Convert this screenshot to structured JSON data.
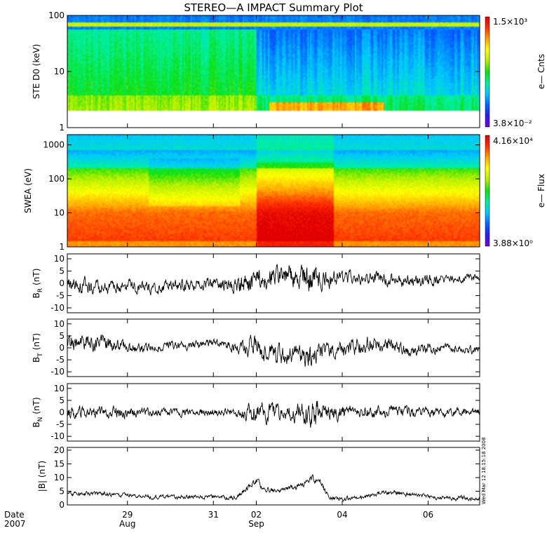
{
  "figure": {
    "title": "STEREO—A IMPACT Summary Plot",
    "timestamp": "Wed Mar 12 18:15:18 2008",
    "date_label": "Date",
    "year_label": "2007"
  },
  "colors": {
    "palette": [
      "#7a00d4",
      "#2a1ef0",
      "#0064ff",
      "#00c8ff",
      "#00f0a0",
      "#10e010",
      "#b8f000",
      "#ffff00",
      "#ffa800",
      "#ff3000",
      "#e00000"
    ],
    "line": "#000000"
  },
  "chart_data": [
    {
      "id": "ste",
      "type": "heatmap",
      "ylabel": "STE D0 (keV)",
      "ylog": true,
      "ylim": [
        1,
        100
      ],
      "yticks": [
        "1",
        "10",
        "100"
      ],
      "colorbar": {
        "label": "e— Cnts",
        "max": "1.5×10³",
        "min": "3.8×10⁻²",
        "vmax": 1500,
        "vmin": 0.038
      },
      "data_range_kev": [
        2,
        100
      ]
    },
    {
      "id": "swea",
      "type": "heatmap",
      "ylabel": "SWEA (eV)",
      "ylog": true,
      "ylim": [
        1,
        2000
      ],
      "yticks": [
        "1",
        "10",
        "100",
        "1000"
      ],
      "colorbar": {
        "label": "e— Flux",
        "max": "4.16×10⁴",
        "min": "3.88×10⁰",
        "vmax": 41600,
        "vmin": 3.88
      }
    },
    {
      "id": "br",
      "type": "line",
      "ylabel_main": "B",
      "ylabel_sub": "R",
      "ylabel_unit": "(nT)",
      "ylim": [
        -12,
        12
      ],
      "yticks": [
        "-10",
        "-5",
        "0",
        "5",
        "10"
      ],
      "series": [
        {
          "x": [
            28.0,
            28.5,
            29.0,
            29.5,
            30.0,
            30.5,
            31.0,
            31.5,
            32.0,
            32.5,
            33.0,
            33.3,
            33.5,
            34.0,
            34.5,
            35.0,
            35.5,
            36.0,
            36.5,
            37.0
          ],
          "values": [
            -1,
            -2,
            -1,
            -2,
            -1,
            -1,
            0,
            -1,
            1,
            3,
            3,
            2,
            2,
            2,
            2,
            2,
            1,
            1,
            2,
            2
          ],
          "amplitude": [
            4,
            3,
            3,
            3,
            3,
            3,
            3,
            4,
            7,
            5,
            6,
            9,
            5,
            4,
            3,
            3,
            3,
            3,
            2,
            2
          ]
        }
      ]
    },
    {
      "id": "bt",
      "type": "line",
      "ylabel_main": "B",
      "ylabel_sub": "T",
      "ylabel_unit": "(nT)",
      "ylim": [
        -12,
        12
      ],
      "yticks": [
        "-10",
        "-5",
        "0",
        "5",
        "10"
      ],
      "series": [
        {
          "x": [
            28.0,
            28.5,
            29.0,
            29.5,
            30.0,
            30.5,
            31.0,
            31.5,
            32.0,
            32.5,
            33.0,
            33.3,
            33.5,
            34.0,
            34.5,
            35.0,
            35.5,
            36.0,
            36.5,
            37.0
          ],
          "values": [
            2,
            2,
            0,
            0,
            1,
            1,
            2,
            1,
            0,
            -3,
            -3,
            -4,
            -2,
            -1,
            1,
            2,
            -2,
            0,
            0,
            -1
          ],
          "amplitude": [
            4,
            4,
            3,
            2,
            2,
            2,
            2,
            3,
            6,
            5,
            5,
            7,
            4,
            4,
            4,
            4,
            3,
            3,
            2,
            2
          ]
        }
      ]
    },
    {
      "id": "bn",
      "type": "line",
      "ylabel_main": "B",
      "ylabel_sub": "N",
      "ylabel_unit": "(nT)",
      "ylim": [
        -12,
        12
      ],
      "yticks": [
        "-10",
        "-5",
        "0",
        "5",
        "10"
      ],
      "series": [
        {
          "x": [
            28.0,
            28.5,
            29.0,
            29.5,
            30.0,
            30.5,
            31.0,
            31.5,
            32.0,
            32.5,
            33.0,
            33.3,
            33.5,
            34.0,
            34.5,
            35.0,
            35.5,
            36.0,
            36.5,
            37.0
          ],
          "values": [
            0,
            0,
            0,
            0,
            0,
            0,
            0,
            0,
            0,
            0,
            0,
            0,
            0,
            0,
            0,
            0,
            0,
            0,
            0,
            0
          ],
          "amplitude": [
            3,
            3,
            3,
            2,
            2,
            2,
            2,
            2,
            6,
            4,
            5,
            9,
            5,
            4,
            3,
            3,
            3,
            2,
            2,
            2
          ]
        }
      ]
    },
    {
      "id": "bmag",
      "type": "line",
      "ylabel_main": "|B| (nT)",
      "ylim": [
        0,
        21
      ],
      "yticks": [
        "0",
        "5",
        "10",
        "15",
        "20"
      ],
      "series": [
        {
          "x": [
            28.0,
            28.5,
            29.0,
            29.5,
            30.0,
            30.5,
            31.0,
            31.5,
            32.0,
            32.2,
            32.5,
            33.0,
            33.3,
            33.5,
            33.7,
            34.0,
            34.5,
            35.0,
            35.5,
            36.0,
            36.5,
            37.0
          ],
          "values": [
            4,
            4,
            3.5,
            3,
            3,
            3,
            3,
            2.5,
            9,
            6,
            5,
            7,
            10,
            8,
            2.5,
            2,
            3,
            4.5,
            4,
            3,
            2.5,
            2.5
          ],
          "amplitude": [
            1,
            1,
            1,
            1,
            1,
            1,
            1,
            1,
            1.5,
            1.5,
            1,
            1.5,
            1.5,
            1.5,
            1,
            1,
            1,
            1,
            1,
            1,
            1,
            1
          ]
        }
      ]
    }
  ],
  "time_axis": {
    "xlim": [
      27.6,
      37.2
    ],
    "major_ticks": [
      {
        "x": 29,
        "day": "29",
        "month": "Aug"
      },
      {
        "x": 31,
        "day": "31",
        "month": ""
      },
      {
        "x": 32,
        "day": "02",
        "month": "Sep"
      },
      {
        "x": 34,
        "day": "04",
        "month": ""
      },
      {
        "x": 36,
        "day": "06",
        "month": ""
      }
    ]
  }
}
